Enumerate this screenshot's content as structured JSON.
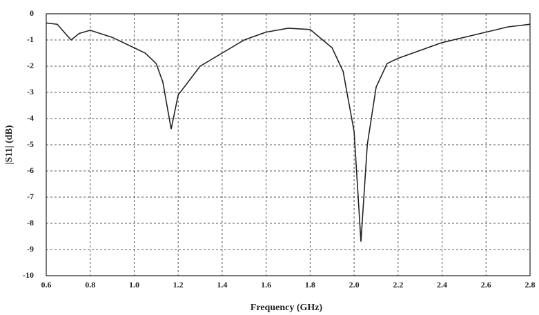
{
  "chart_data": {
    "type": "line",
    "xlabel": "Frequency (GHz)",
    "ylabel": "|S11| (dB)",
    "x": [
      0.6,
      0.65,
      0.713,
      0.75,
      0.8,
      0.9,
      1.0,
      1.05,
      1.1,
      1.13,
      1.168,
      1.2,
      1.3,
      1.4,
      1.5,
      1.6,
      1.7,
      1.8,
      1.9,
      1.95,
      2.0,
      2.031,
      2.06,
      2.1,
      2.15,
      2.2,
      2.4,
      2.6,
      2.7,
      2.8
    ],
    "series": [
      {
        "color": "#222222",
        "values": [
          -0.35,
          -0.4,
          -1.0,
          -0.75,
          -0.63,
          -0.9,
          -1.3,
          -1.5,
          -1.9,
          -2.6,
          -4.4,
          -3.1,
          -2.0,
          -1.5,
          -1.0,
          -0.7,
          -0.55,
          -0.6,
          -1.3,
          -2.2,
          -4.5,
          -8.7,
          -5.0,
          -2.8,
          -1.9,
          -1.7,
          -1.1,
          -0.7,
          -0.5,
          -0.4
        ]
      }
    ],
    "xlim": [
      0.6,
      2.8
    ],
    "xticks": [
      0.6,
      0.8,
      {
        "value": 1,
        "label": "1.0"
      },
      1.2,
      1.4,
      1.6,
      1.8,
      {
        "value": 2,
        "label": "2.0"
      },
      2.2,
      2.4,
      2.6,
      2.8
    ],
    "ylim": [
      -10,
      0
    ],
    "yticks": [
      0,
      -1,
      -2,
      -3,
      -4,
      -5,
      -6,
      -7,
      -8,
      -9,
      -10
    ],
    "grid": true
  }
}
